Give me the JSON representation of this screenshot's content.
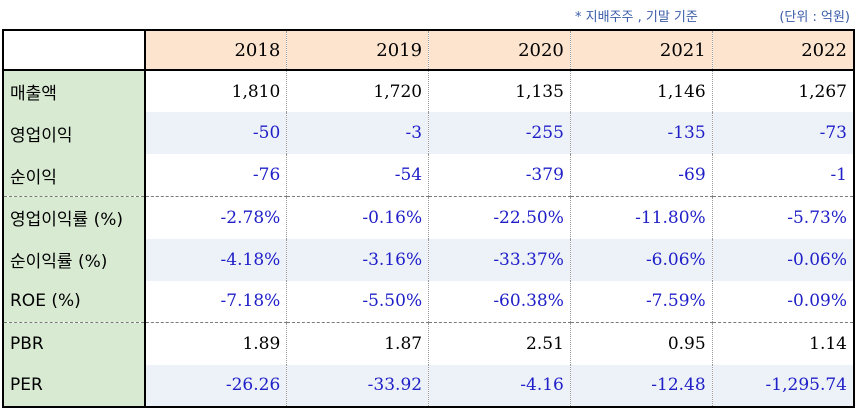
{
  "notes": {
    "basis": "* 지배주주 , 기말 기준",
    "unit": "(단위 : 억원)"
  },
  "years": [
    "2018",
    "2019",
    "2020",
    "2021",
    "2022"
  ],
  "rows": [
    {
      "label": "매출액",
      "values": [
        "1,810",
        "1,720",
        "1,135",
        "1,146",
        "1,267"
      ]
    },
    {
      "label": "영업이익",
      "values": [
        "-50",
        "-3",
        "-255",
        "-135",
        "-73"
      ]
    },
    {
      "label": "순이익",
      "values": [
        "-76",
        "-54",
        "-379",
        "-69",
        "-1"
      ]
    },
    {
      "label": "영업이익률 (%)",
      "values": [
        "-2.78%",
        "-0.16%",
        "-22.50%",
        "-11.80%",
        "-5.73%"
      ]
    },
    {
      "label": "순이익률 (%)",
      "values": [
        "-4.18%",
        "-3.16%",
        "-33.37%",
        "-6.06%",
        "-0.06%"
      ]
    },
    {
      "label": "ROE (%)",
      "values": [
        "-7.18%",
        "-5.50%",
        "-60.38%",
        "-7.59%",
        "-0.09%"
      ]
    },
    {
      "label": "PBR",
      "values": [
        "1.89",
        "1.87",
        "2.51",
        "0.95",
        "1.14"
      ]
    },
    {
      "label": "PER",
      "values": [
        "-26.26",
        "-33.92",
        "-4.16",
        "-12.48",
        "-1,295.74"
      ]
    }
  ],
  "colors": {
    "header_bg": "#fde4cf",
    "label_bg": "#d9ead3",
    "shaded_row_bg": "#edf1f8",
    "negative_text": "#2020c8",
    "positive_text": "#000000",
    "note_text": "#3a5da8"
  }
}
